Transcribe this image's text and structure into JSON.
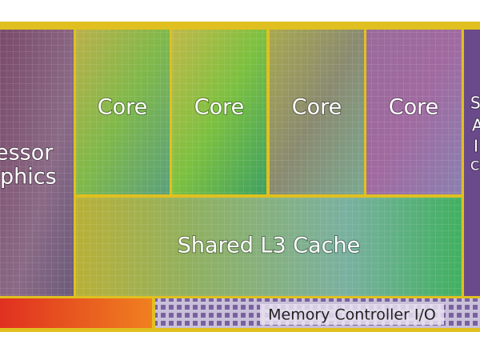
{
  "regions": {
    "graphics": {
      "lines": [
        "essor",
        "phics"
      ]
    },
    "cores": [
      {
        "label": "Core"
      },
      {
        "label": "Core"
      },
      {
        "label": "Core"
      },
      {
        "label": "Core"
      }
    ],
    "cache": {
      "label": "Shared L3 Cache"
    },
    "memory": {
      "label": "Memory Controller I/O"
    },
    "agent": {
      "lines": [
        "S",
        "A",
        "I",
        "C"
      ]
    }
  }
}
